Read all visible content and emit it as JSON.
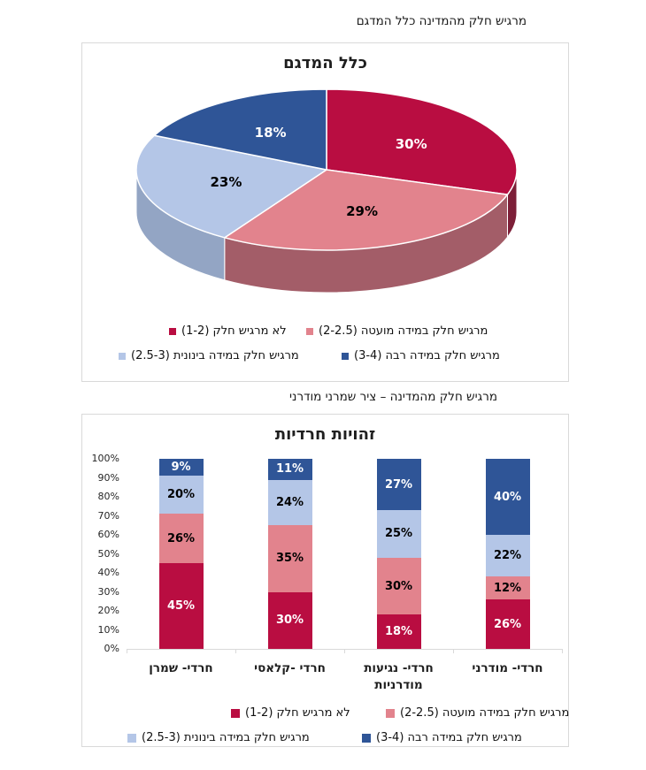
{
  "page": {
    "title1": "מרגיש חלק מהמדינה כלל המדגם",
    "title2": "מרגיש חלק מהמדינה – ציר שמרני מודרני"
  },
  "colors": {
    "series": {
      "not_part": "#B90D41",
      "little": "#E2838D",
      "medium": "#B4C6E7",
      "much": "#2F5597"
    },
    "series_side": {
      "not_part": "#7D1F38",
      "little": "#A35D68",
      "medium": "#93A5C4",
      "much": "#24406E"
    },
    "value_label": {
      "not_part": "#FFFFFF",
      "little": "#000000",
      "medium": "#000000",
      "much": "#FFFFFF"
    },
    "box_border": "#D9D9D9",
    "axis_line": "#D9D9D9"
  },
  "legend": {
    "items": [
      {
        "label": "לא מרגיש חלק (1-2)",
        "key": "not_part"
      },
      {
        "label": "מרגיש חלק במידה מועטה (2-2.5)",
        "key": "little"
      },
      {
        "label": "מרגיש חלק במידה בינונית (2.5-3)",
        "key": "medium"
      },
      {
        "label": "מרגיש חלק במידה רבה (3-4)",
        "key": "much"
      }
    ]
  },
  "chart_data": [
    {
      "type": "pie",
      "style": "3d",
      "title": "כלל המדגם",
      "labels": [
        "לא מרגיש חלק (1-2)",
        "מרגיש חלק במידה מועטה (2-2.5)",
        "מרגיש חלק במידה בינונית (2.5-3)",
        "מרגיש חלק במידה רבה (3-4)"
      ],
      "series_keys": [
        "not_part",
        "little",
        "medium",
        "much"
      ],
      "values": [
        30,
        29,
        23,
        18
      ],
      "value_labels": [
        "30%",
        "29%",
        "23%",
        "18%"
      ],
      "start_angle_deg": 0,
      "direction": "clockwise",
      "legend_position": "bottom"
    },
    {
      "type": "bar",
      "stacked": true,
      "title": "זהויות חרדיות",
      "categories": [
        "חרדי- שמרן",
        "חרדי -קלאסי",
        "חרדי- נגיעות מודרניות",
        "חרדי- מודרני"
      ],
      "series": [
        {
          "name": "לא מרגיש חלק (1-2)",
          "key": "not_part",
          "values": [
            45,
            30,
            18,
            26
          ]
        },
        {
          "name": "מרגיש חלק במידה מועטה (2-2.5)",
          "key": "little",
          "values": [
            26,
            35,
            30,
            12
          ]
        },
        {
          "name": "מרגיש חלק במידה בינונית (2.5-3)",
          "key": "medium",
          "values": [
            20,
            24,
            25,
            22
          ]
        },
        {
          "name": "מרגיש חלק במידה רבה (3-4)",
          "key": "much",
          "values": [
            9,
            11,
            27,
            40
          ]
        }
      ],
      "ylim": [
        0,
        100
      ],
      "ytick_step": 10,
      "yticklabels": [
        "0%",
        "10%",
        "20%",
        "30%",
        "40%",
        "50%",
        "60%",
        "70%",
        "80%",
        "90%",
        "100%"
      ],
      "grid": false,
      "legend_position": "bottom"
    }
  ]
}
